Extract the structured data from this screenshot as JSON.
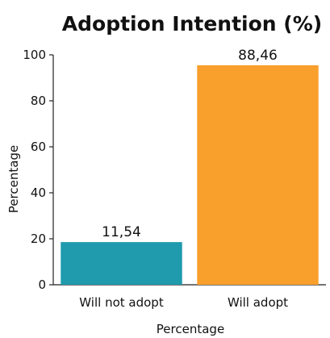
{
  "chart_data": {
    "type": "bar",
    "title": "Adoption Intention (%)",
    "xlabel": "Percentage",
    "ylabel": "Percentage",
    "categories": [
      "Will not adopt",
      "Will adopt"
    ],
    "values": [
      11.54,
      88.46
    ],
    "value_labels": [
      "11,54",
      "88,46"
    ],
    "colors": [
      "#1f9bad",
      "#f99f2b"
    ],
    "ylim": [
      0,
      100
    ],
    "yticks": [
      0,
      20,
      40,
      60,
      80,
      100
    ],
    "ytick_labels": [
      "0",
      "20",
      "40",
      "60",
      "80",
      "100"
    ],
    "grid": false,
    "legend": "none"
  }
}
